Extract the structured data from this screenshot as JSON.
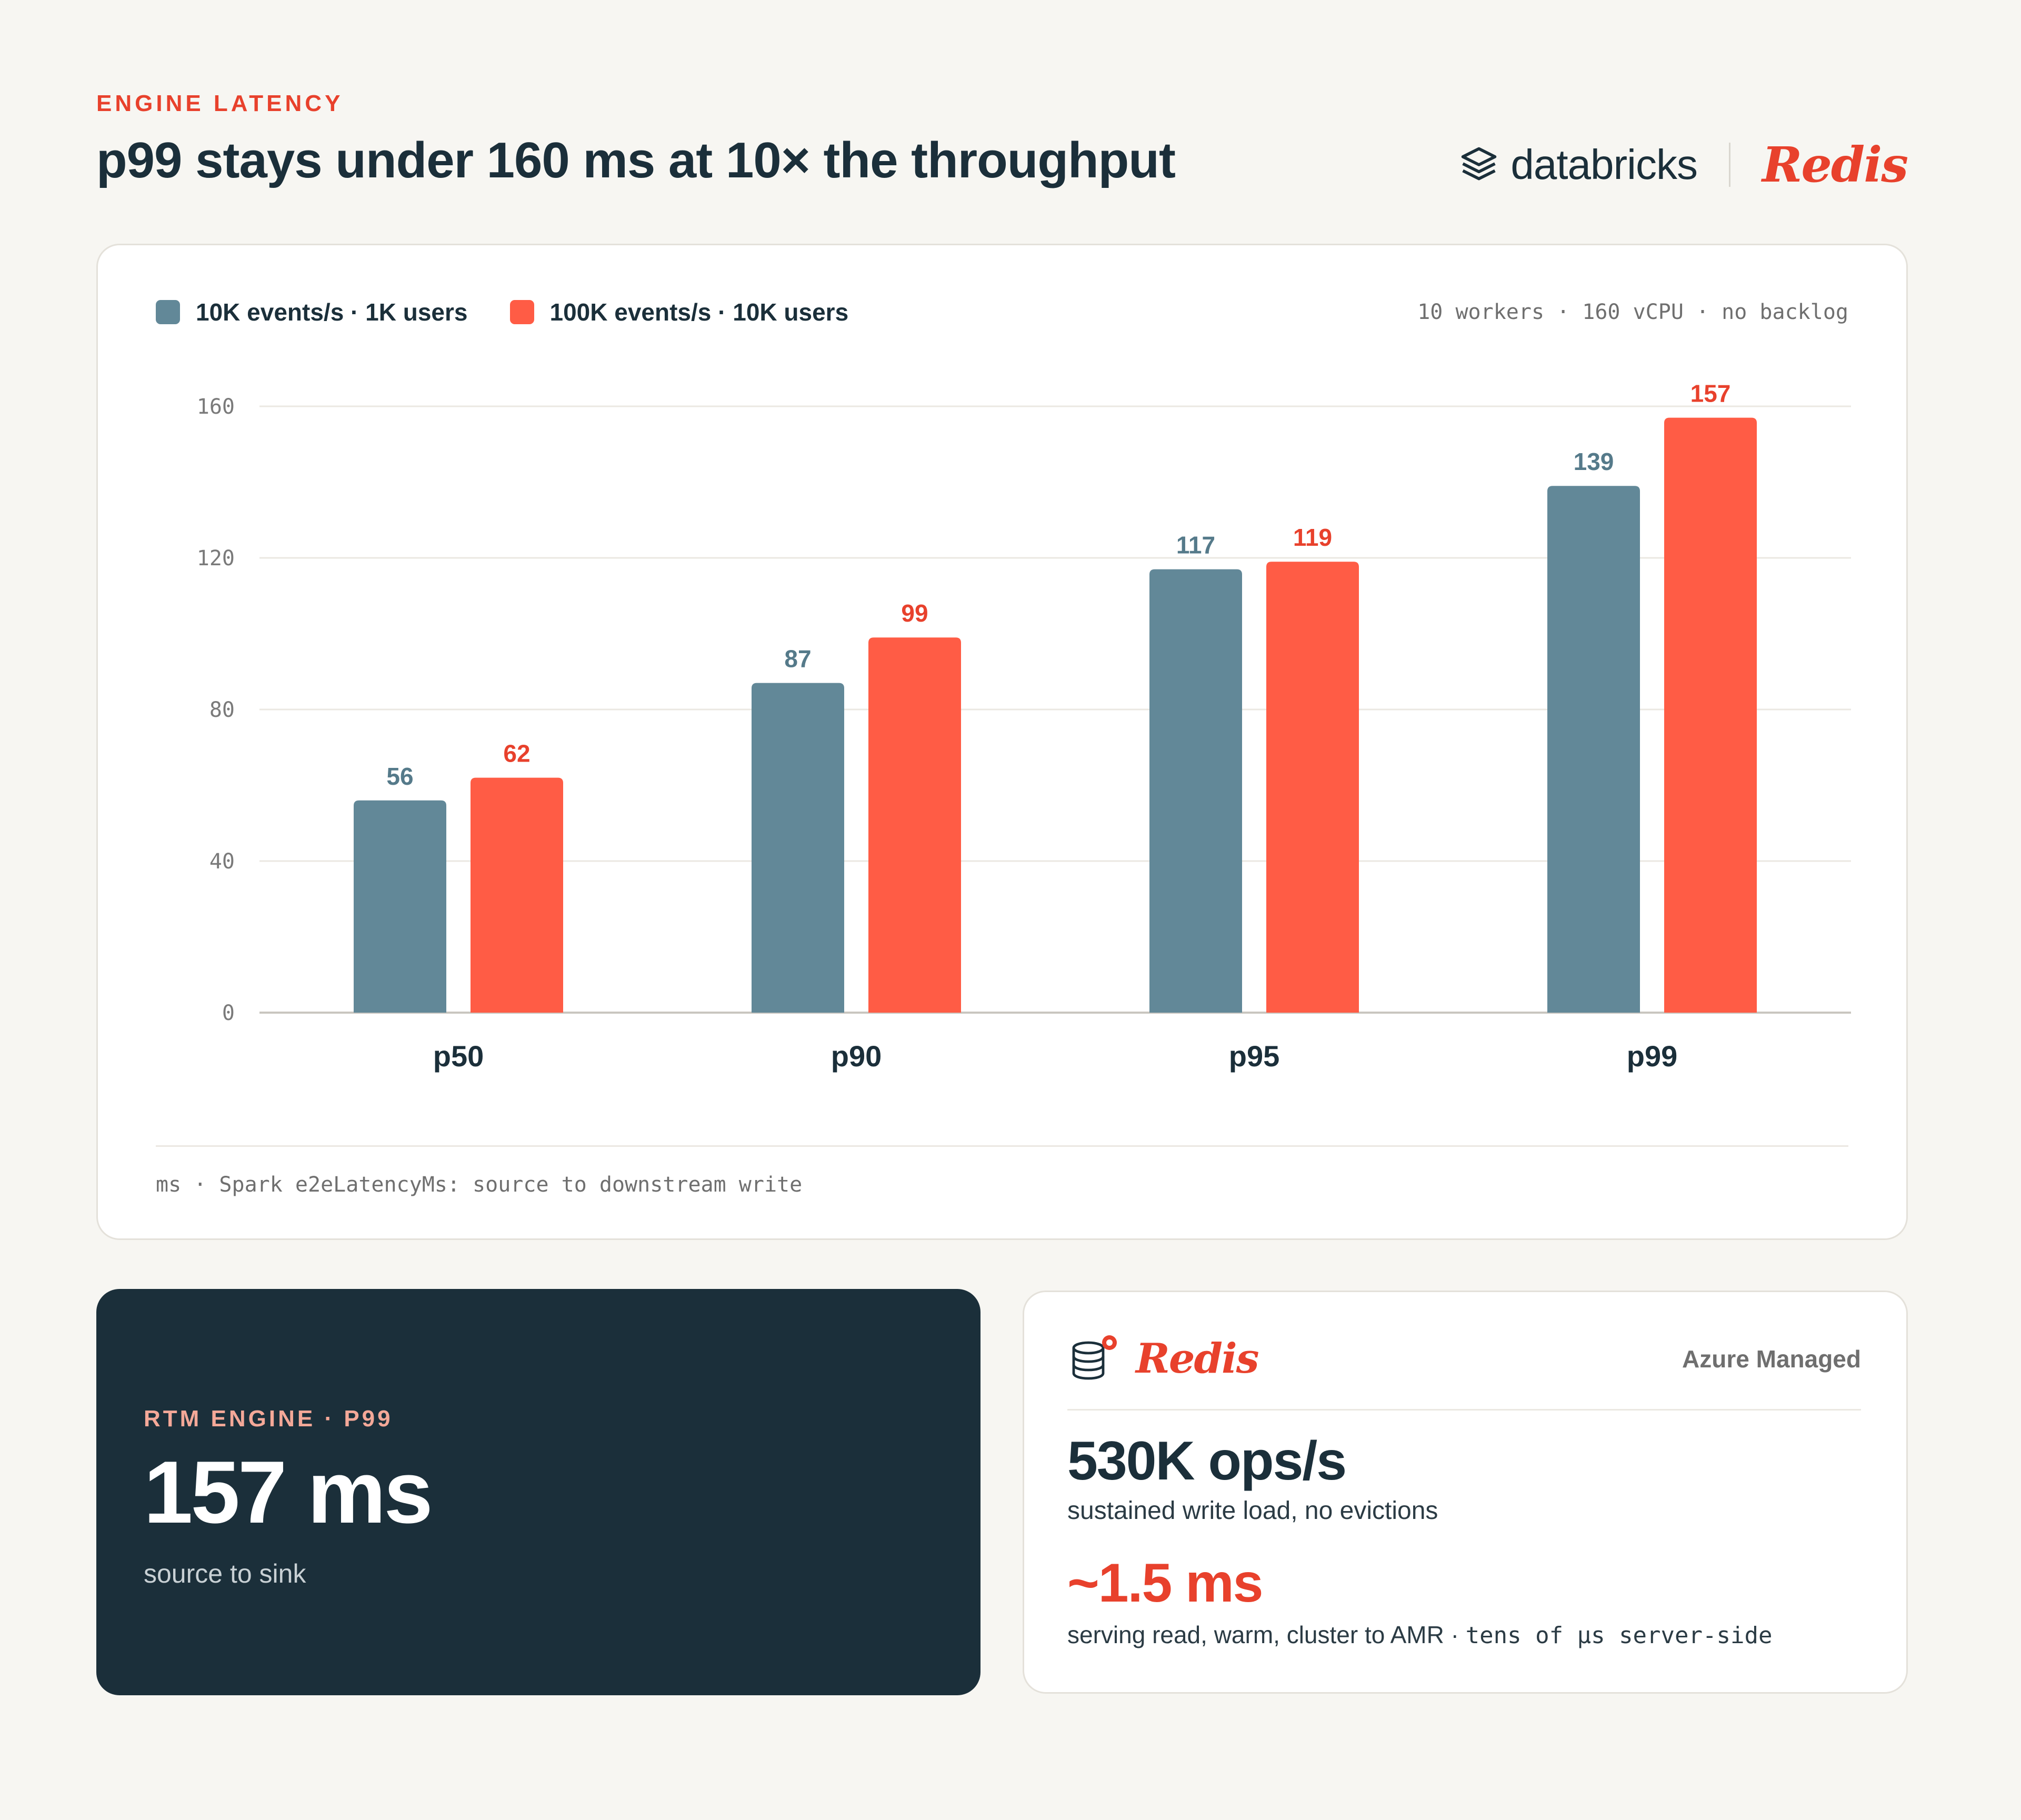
{
  "header": {
    "eyebrow": "ENGINE LATENCY",
    "title": "p99 stays under 160 ms at 10× the throughput",
    "logo_databricks": "databricks",
    "logo_redis": "Redis"
  },
  "colors": {
    "series_a": "#628898",
    "series_b": "#ff5c45",
    "accent": "#e8412c",
    "dark": "#1b2f3a"
  },
  "chart_meta": "10 workers · 160 vCPU · no backlog",
  "chart_footer": "ms · Spark e2eLatencyMs: source to downstream write",
  "chart_data": {
    "type": "bar",
    "categories": [
      "p50",
      "p90",
      "p95",
      "p99"
    ],
    "series": [
      {
        "name": "10K events/s · 1K users",
        "values": [
          56,
          87,
          117,
          139
        ]
      },
      {
        "name": "100K events/s · 10K users",
        "values": [
          62,
          99,
          119,
          157
        ]
      }
    ],
    "yticks": [
      0,
      40,
      80,
      120,
      160
    ],
    "ylim": [
      0,
      160
    ],
    "grid": true,
    "legend": "top-left"
  },
  "stat_card": {
    "eyebrow": "RTM ENGINE · P99",
    "value": "157 ms",
    "caption": "source to sink"
  },
  "redis_card": {
    "brand": "Redis",
    "tag": "Azure Managed",
    "metric_1": "530K ops/s",
    "metric_1_caption": "sustained write load, no evictions",
    "metric_2": "~1.5 ms",
    "metric_2_caption": "serving read, warm, cluster to AMR ·",
    "metric_2_caption_mono": "tens of μs server-side"
  }
}
